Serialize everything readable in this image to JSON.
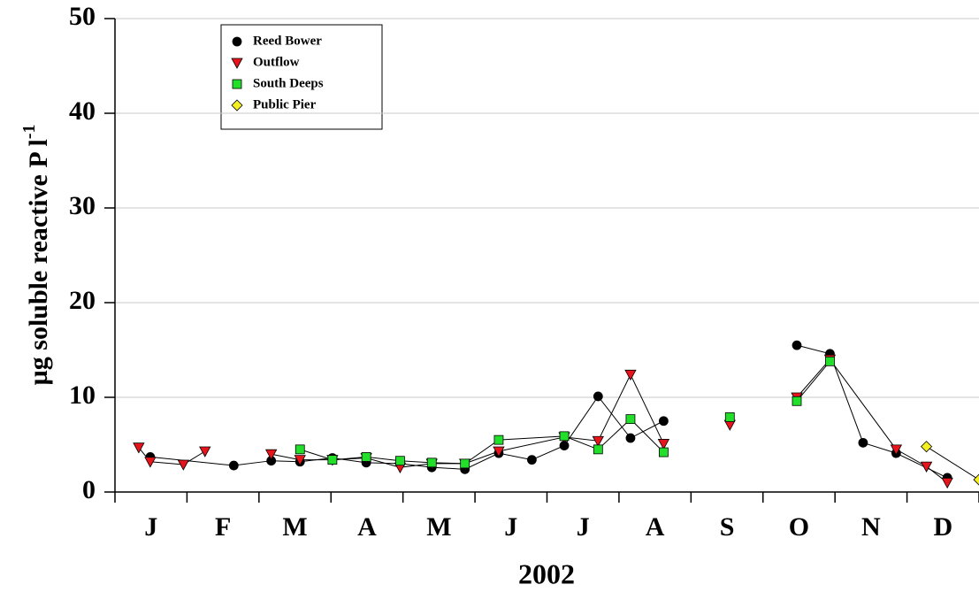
{
  "chart_data": {
    "type": "scatter-line",
    "xlabel": "2002",
    "ylabel": "µg soluble reactive P l",
    "ylabel_superscript": "-1",
    "xlim": [
      0,
      12
    ],
    "ylim": [
      0,
      50
    ],
    "yticks": [
      0,
      10,
      20,
      30,
      40,
      50
    ],
    "xticks": [
      {
        "value": 0.5,
        "label": "J"
      },
      {
        "value": 1.5,
        "label": "F"
      },
      {
        "value": 2.5,
        "label": "M"
      },
      {
        "value": 3.5,
        "label": "A"
      },
      {
        "value": 4.5,
        "label": "M"
      },
      {
        "value": 5.5,
        "label": "J"
      },
      {
        "value": 6.5,
        "label": "J"
      },
      {
        "value": 7.5,
        "label": "A"
      },
      {
        "value": 8.5,
        "label": "S"
      },
      {
        "value": 9.5,
        "label": "O"
      },
      {
        "value": 10.5,
        "label": "N"
      },
      {
        "value": 11.5,
        "label": "D"
      }
    ],
    "xticks_minor": [
      0,
      1,
      2,
      3,
      4,
      5,
      6,
      7,
      8,
      9,
      10,
      11,
      12
    ],
    "grid": true,
    "legend": "upper left",
    "series": [
      {
        "name": "Reed Bower",
        "color": "#000000",
        "marker": "circle",
        "x": [
          0.49,
          1.65,
          2.17,
          2.57,
          3.02,
          3.49,
          3.96,
          4.4,
          4.86,
          5.33,
          5.79,
          6.24,
          6.71,
          7.16,
          7.62,
          null,
          9.47,
          9.93,
          10.39,
          10.85,
          11.56
        ],
        "values": [
          3.7,
          2.8,
          3.3,
          3.2,
          3.6,
          3.1,
          3.0,
          2.6,
          2.4,
          4.1,
          3.4,
          4.9,
          10.1,
          5.7,
          7.5,
          null,
          15.5,
          14.6,
          5.2,
          4.1,
          1.5
        ]
      },
      {
        "name": "Outflow",
        "color": "#e8141c",
        "marker": "triangle-down",
        "x": [
          0.33,
          0.49,
          0.95,
          1.25,
          null,
          2.17,
          2.57,
          3.02,
          3.49,
          3.96,
          4.4,
          4.86,
          5.33,
          6.24,
          6.71,
          7.16,
          7.62,
          null,
          8.54,
          null,
          9.47,
          9.93,
          10.85,
          11.27,
          11.56
        ],
        "values": [
          4.7,
          3.2,
          2.9,
          4.3,
          null,
          4.0,
          3.4,
          3.4,
          3.6,
          2.6,
          3.0,
          3.0,
          4.3,
          5.8,
          5.4,
          12.4,
          5.1,
          null,
          7.1,
          null,
          10.0,
          14.0,
          4.5,
          2.7,
          1.0
        ]
      },
      {
        "name": "South Deeps",
        "color": "#22e02a",
        "marker": "square",
        "x": [
          2.57,
          3.02,
          3.49,
          3.96,
          4.4,
          4.86,
          5.33,
          6.24,
          6.71,
          7.16,
          7.62,
          null,
          8.54,
          null,
          9.47,
          9.93
        ],
        "values": [
          4.5,
          3.4,
          3.7,
          3.3,
          3.1,
          3.0,
          5.5,
          5.9,
          4.5,
          7.7,
          4.2,
          null,
          7.9,
          null,
          9.6,
          13.8
        ]
      },
      {
        "name": "Public Pier",
        "color": "#f4f020",
        "marker": "diamond",
        "x": [
          11.27,
          12.0
        ],
        "values": [
          4.8,
          1.3
        ]
      }
    ]
  }
}
